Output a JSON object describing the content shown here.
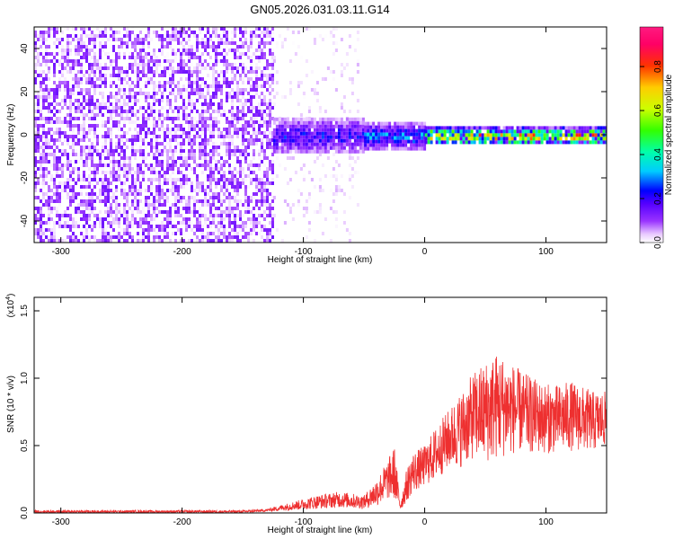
{
  "title": "GN05.2026.031.03.11.G14",
  "chart_data": [
    {
      "type": "heatmap",
      "xlabel": "Height of straight line (km)",
      "ylabel": "Frequency (Hz)",
      "xlim": [
        -322,
        150
      ],
      "ylim": [
        -50,
        50
      ],
      "xticks": [
        -300,
        -200,
        -100,
        0,
        100
      ],
      "yticks": [
        -40,
        -20,
        0,
        20,
        40
      ],
      "colorbar": {
        "label": "Normalized spectral amplitude",
        "range": [
          0,
          0.98
        ],
        "ticks": [
          0.0,
          0.2,
          0.4,
          0.6,
          0.8
        ],
        "colors": [
          "#ffffff",
          "#e8c8ff",
          "#9933ff",
          "#5500ff",
          "#0000ff",
          "#00ccff",
          "#00ffaa",
          "#33ff00",
          "#ccff00",
          "#ffcc00",
          "#ff3300",
          "#ff0066",
          "#ff1a80"
        ]
      },
      "regions": [
        {
          "x": [
            -322,
            -125
          ],
          "freq_spread": [
            -50,
            50
          ],
          "amplitude": [
            0.0,
            0.15
          ]
        },
        {
          "x": [
            -125,
            -55
          ],
          "freq_spread": [
            -50,
            50
          ],
          "amplitude": [
            0.0,
            0.05
          ]
        },
        {
          "x": [
            -125,
            -50
          ],
          "freq_spread": [
            -8,
            8
          ],
          "amplitude": [
            0.1,
            0.3
          ]
        },
        {
          "x": [
            -50,
            0
          ],
          "freq_spread": [
            -6,
            6
          ],
          "amplitude": [
            0.15,
            0.4
          ]
        },
        {
          "x": [
            0,
            150
          ],
          "freq_spread": [
            -4,
            4
          ],
          "amplitude": [
            0.2,
            0.98
          ]
        }
      ]
    },
    {
      "type": "line",
      "xlabel": "Height of straight line (km)",
      "ylabel": "SNR (10 * v/v)",
      "y_multiplier": "(x10",
      "y_multiplier_exp": "4",
      "xlim": [
        -322,
        150
      ],
      "ylim": [
        0,
        1.6
      ],
      "xticks": [
        -300,
        -200,
        -100,
        0,
        100
      ],
      "yticks": [
        0.0,
        0.5,
        1.0,
        1.5
      ],
      "ytick_labels": [
        "0.0",
        "0.5",
        "1.0",
        "1.5"
      ],
      "color": "#ee3030",
      "series": [
        {
          "x": [
            -322,
            -250,
            -200,
            -150,
            -130,
            -110,
            -90,
            -70,
            -50,
            -40,
            -30,
            -25,
            -20,
            -15,
            -10,
            0,
            10,
            20,
            30,
            40,
            50,
            60,
            70,
            80,
            90,
            100,
            110,
            120,
            130,
            140,
            150
          ],
          "y": [
            0.01,
            0.01,
            0.01,
            0.01,
            0.02,
            0.05,
            0.08,
            0.1,
            0.08,
            0.15,
            0.25,
            0.3,
            0.05,
            0.2,
            0.3,
            0.35,
            0.45,
            0.55,
            0.62,
            0.72,
            0.75,
            0.8,
            0.78,
            0.75,
            0.72,
            0.7,
            0.7,
            0.72,
            0.7,
            0.68,
            0.7
          ],
          "spread": [
            0.01,
            0.01,
            0.01,
            0.01,
            0.01,
            0.03,
            0.05,
            0.06,
            0.05,
            0.1,
            0.15,
            0.2,
            0.03,
            0.12,
            0.15,
            0.15,
            0.2,
            0.22,
            0.28,
            0.32,
            0.38,
            0.4,
            0.35,
            0.3,
            0.28,
            0.26,
            0.25,
            0.26,
            0.24,
            0.22,
            0.2
          ]
        }
      ]
    }
  ]
}
